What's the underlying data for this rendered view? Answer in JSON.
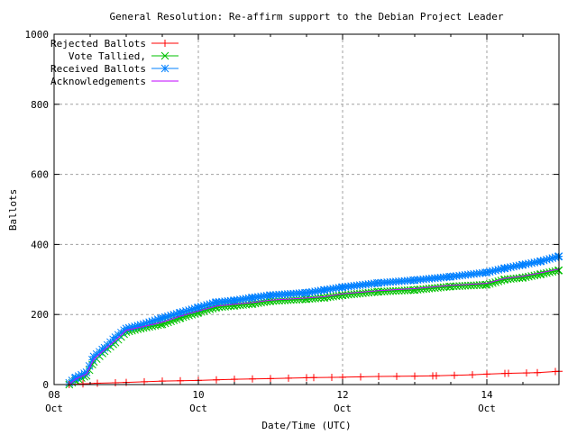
{
  "chart_data": {
    "type": "line",
    "title": "General Resolution: Re-affirm support to the Debian Project Leader",
    "xlabel": "Date/Time (UTC)",
    "ylabel": "Ballots",
    "xlim": [
      8,
      15
    ],
    "ylim": [
      0,
      1000
    ],
    "x_ticks": [
      {
        "value": 8,
        "label": "08",
        "sub": "Oct"
      },
      {
        "value": 10,
        "label": "10",
        "sub": "Oct"
      },
      {
        "value": 12,
        "label": "12",
        "sub": "Oct"
      },
      {
        "value": 14,
        "label": "14",
        "sub": "Oct"
      }
    ],
    "y_ticks": [
      0,
      200,
      400,
      600,
      800,
      1000
    ],
    "grid": true,
    "legend_position": "top-left",
    "series": [
      {
        "name": "Rejected Ballots",
        "color": "#ff0000",
        "marker": "plus",
        "points": [
          [
            8.21,
            0
          ],
          [
            8.4,
            2
          ],
          [
            8.6,
            4
          ],
          [
            9.0,
            6
          ],
          [
            9.5,
            10
          ],
          [
            10.0,
            12
          ],
          [
            10.5,
            15
          ],
          [
            11.0,
            17
          ],
          [
            11.6,
            20
          ],
          [
            12.0,
            21
          ],
          [
            12.5,
            23
          ],
          [
            13.0,
            24
          ],
          [
            13.3,
            25
          ],
          [
            13.8,
            28
          ],
          [
            14.0,
            30
          ],
          [
            14.3,
            32
          ],
          [
            14.7,
            34
          ],
          [
            15.0,
            38
          ]
        ]
      },
      {
        "name": "Vote Tallied,",
        "color": "#00c000",
        "marker": "x",
        "points": [
          [
            8.21,
            0
          ],
          [
            8.3,
            12
          ],
          [
            8.45,
            25
          ],
          [
            8.55,
            65
          ],
          [
            8.7,
            95
          ],
          [
            8.85,
            120
          ],
          [
            9.0,
            150
          ],
          [
            9.2,
            160
          ],
          [
            9.5,
            172
          ],
          [
            9.75,
            190
          ],
          [
            10.0,
            205
          ],
          [
            10.25,
            220
          ],
          [
            10.5,
            225
          ],
          [
            10.75,
            230
          ],
          [
            11.0,
            238
          ],
          [
            11.5,
            244
          ],
          [
            11.75,
            248
          ],
          [
            12.0,
            255
          ],
          [
            12.5,
            265
          ],
          [
            13.0,
            270
          ],
          [
            13.5,
            280
          ],
          [
            14.0,
            285
          ],
          [
            14.25,
            300
          ],
          [
            14.5,
            305
          ],
          [
            14.75,
            315
          ],
          [
            15.0,
            326
          ]
        ]
      },
      {
        "name": "Received Ballots",
        "color": "#0080ff",
        "marker": "asterisk",
        "points": [
          [
            8.21,
            5
          ],
          [
            8.3,
            20
          ],
          [
            8.45,
            35
          ],
          [
            8.55,
            80
          ],
          [
            8.7,
            105
          ],
          [
            8.85,
            135
          ],
          [
            9.0,
            160
          ],
          [
            9.2,
            170
          ],
          [
            9.5,
            190
          ],
          [
            9.75,
            205
          ],
          [
            10.0,
            220
          ],
          [
            10.25,
            235
          ],
          [
            10.5,
            240
          ],
          [
            10.75,
            248
          ],
          [
            11.0,
            255
          ],
          [
            11.5,
            262
          ],
          [
            11.75,
            270
          ],
          [
            12.0,
            278
          ],
          [
            12.5,
            290
          ],
          [
            13.0,
            298
          ],
          [
            13.5,
            308
          ],
          [
            14.0,
            320
          ],
          [
            14.25,
            332
          ],
          [
            14.5,
            342
          ],
          [
            14.75,
            352
          ],
          [
            15.0,
            366
          ]
        ]
      },
      {
        "name": "Acknowledgements",
        "color": "#c000ff",
        "marker": "none",
        "points": [
          [
            8.21,
            0
          ],
          [
            8.3,
            16
          ],
          [
            8.45,
            30
          ],
          [
            8.55,
            72
          ],
          [
            8.7,
            100
          ],
          [
            8.85,
            126
          ],
          [
            9.0,
            155
          ],
          [
            9.2,
            164
          ],
          [
            9.5,
            178
          ],
          [
            9.75,
            195
          ],
          [
            10.0,
            210
          ],
          [
            10.25,
            224
          ],
          [
            10.5,
            229
          ],
          [
            10.75,
            234
          ],
          [
            11.0,
            241
          ],
          [
            11.5,
            247
          ],
          [
            11.75,
            251
          ],
          [
            12.0,
            259
          ],
          [
            12.5,
            268
          ],
          [
            13.0,
            274
          ],
          [
            13.5,
            283
          ],
          [
            14.0,
            289
          ],
          [
            14.25,
            303
          ],
          [
            14.5,
            309
          ],
          [
            14.75,
            319
          ],
          [
            15.0,
            330
          ]
        ]
      }
    ]
  }
}
